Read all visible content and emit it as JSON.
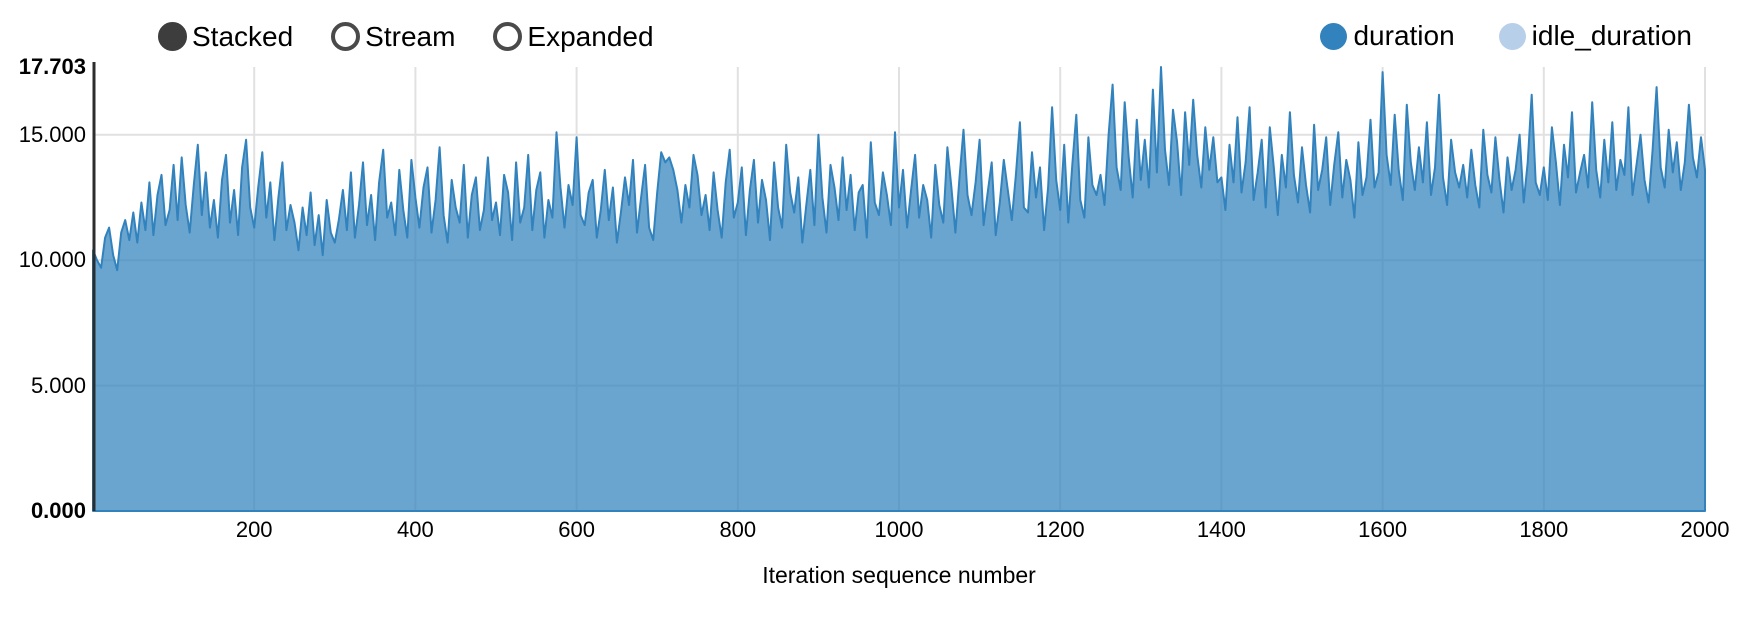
{
  "controls": {
    "options": [
      {
        "label": "Stacked",
        "selected": true
      },
      {
        "label": "Stream",
        "selected": false
      },
      {
        "label": "Expanded",
        "selected": false
      }
    ]
  },
  "legend": {
    "items": [
      {
        "label": "duration",
        "color": "#3182bd"
      },
      {
        "label": "idle_duration",
        "color": "#b8cfe9"
      }
    ]
  },
  "chart_data": {
    "type": "area",
    "title": "",
    "xlabel": "Iteration sequence number",
    "ylabel": "",
    "xlim": [
      1,
      2000
    ],
    "ylim": [
      0,
      17.703
    ],
    "grid": true,
    "legend_position": "top-right",
    "x_ticks": [
      200,
      400,
      600,
      800,
      1000,
      1200,
      1400,
      1600,
      1800,
      2000
    ],
    "y_ticks": [
      {
        "value": 0,
        "label": "0.000",
        "bold": true
      },
      {
        "value": 5,
        "label": "5.000",
        "bold": false
      },
      {
        "value": 10,
        "label": "10.000",
        "bold": false
      },
      {
        "value": 15,
        "label": "15.000",
        "bold": false
      },
      {
        "value": 17.703,
        "label": "17.703",
        "bold": true
      }
    ],
    "series": [
      {
        "name": "duration",
        "color": "#3182bd",
        "fill_opacity": 0.72,
        "x_start": 0,
        "x_step": 5,
        "values": [
          10.4,
          10.0,
          9.7,
          10.9,
          11.3,
          10.2,
          9.6,
          11.1,
          11.6,
          10.8,
          11.9,
          10.7,
          12.3,
          11.2,
          13.1,
          11.0,
          12.6,
          13.4,
          11.4,
          12.0,
          13.8,
          11.6,
          14.1,
          12.2,
          11.1,
          13.0,
          14.6,
          11.8,
          13.5,
          11.3,
          12.4,
          10.9,
          13.2,
          14.2,
          11.5,
          12.8,
          11.0,
          13.7,
          14.8,
          12.1,
          11.3,
          12.9,
          14.3,
          11.7,
          13.1,
          10.8,
          12.5,
          13.9,
          11.2,
          12.2,
          11.5,
          10.4,
          12.1,
          11.0,
          12.7,
          10.6,
          11.8,
          10.2,
          12.4,
          11.1,
          10.7,
          11.6,
          12.8,
          11.2,
          13.5,
          10.9,
          12.2,
          13.9,
          11.4,
          12.6,
          10.8,
          13.1,
          14.4,
          11.7,
          12.3,
          11.0,
          13.6,
          12.0,
          10.9,
          14.0,
          12.5,
          11.3,
          12.9,
          13.7,
          11.1,
          12.4,
          14.5,
          11.8,
          10.7,
          13.2,
          12.1,
          11.5,
          13.8,
          10.9,
          12.6,
          13.3,
          11.2,
          12.0,
          14.1,
          11.6,
          12.3,
          11.0,
          13.4,
          12.7,
          10.8,
          13.9,
          11.5,
          12.1,
          14.2,
          11.2,
          12.8,
          13.5,
          10.9,
          12.4,
          11.7,
          15.1,
          12.9,
          11.3,
          13.0,
          12.2,
          14.9,
          11.8,
          11.4,
          12.7,
          13.2,
          10.9,
          12.0,
          13.6,
          11.6,
          12.9,
          10.7,
          11.9,
          13.3,
          12.2,
          14.0,
          11.1,
          12.5,
          13.8,
          11.3,
          10.8,
          12.7,
          14.3,
          13.9,
          14.1,
          13.6,
          12.8,
          11.5,
          13.0,
          12.1,
          14.2,
          13.4,
          11.8,
          12.6,
          11.2,
          13.5,
          12.0,
          10.9,
          13.1,
          14.4,
          11.7,
          12.3,
          13.7,
          11.0,
          12.8,
          14.0,
          11.5,
          13.2,
          12.4,
          10.8,
          13.9,
          12.1,
          11.3,
          14.6,
          12.7,
          11.9,
          13.3,
          10.7,
          12.2,
          13.6,
          11.4,
          15.0,
          12.5,
          11.1,
          13.8,
          12.9,
          11.6,
          14.1,
          12.0,
          13.4,
          11.2,
          12.7,
          13.0,
          10.9,
          14.7,
          12.3,
          11.8,
          13.5,
          12.6,
          11.4,
          15.1,
          12.1,
          13.6,
          11.3,
          12.8,
          14.2,
          11.7,
          13.0,
          12.4,
          10.9,
          13.8,
          12.2,
          11.5,
          14.5,
          12.9,
          11.1,
          13.3,
          15.2,
          12.6,
          11.8,
          13.1,
          14.8,
          11.4,
          12.7,
          13.9,
          11.0,
          12.3,
          14.0,
          12.8,
          11.6,
          13.4,
          15.5,
          12.1,
          11.9,
          14.3,
          12.5,
          13.7,
          11.2,
          12.9,
          16.1,
          13.2,
          12.0,
          14.6,
          11.5,
          13.8,
          15.8,
          12.4,
          11.7,
          14.9,
          13.0,
          12.6,
          13.4,
          12.2,
          15.0,
          17.0,
          13.7,
          12.8,
          16.3,
          14.1,
          12.5,
          15.6,
          13.2,
          14.8,
          12.9,
          16.8,
          13.5,
          17.703,
          14.4,
          13.0,
          16.0,
          14.7,
          12.6,
          15.9,
          13.8,
          16.4,
          14.2,
          12.9,
          15.3,
          13.6,
          14.9,
          13.1,
          13.3,
          12.0,
          14.6,
          13.1,
          15.7,
          12.7,
          13.9,
          16.1,
          12.4,
          13.5,
          14.8,
          12.1,
          15.3,
          13.7,
          11.8,
          14.2,
          12.9,
          15.9,
          13.4,
          12.3,
          14.5,
          13.0,
          11.9,
          15.4,
          12.8,
          13.6,
          14.9,
          12.2,
          13.8,
          15.1,
          12.5,
          14.0,
          13.2,
          11.7,
          14.7,
          12.6,
          13.3,
          15.6,
          12.9,
          13.5,
          17.5,
          14.2,
          13.0,
          15.8,
          13.6,
          12.4,
          16.2,
          13.9,
          12.8,
          14.5,
          13.1,
          15.5,
          12.6,
          13.7,
          16.6,
          13.3,
          12.2,
          14.8,
          13.5,
          12.9,
          13.8,
          12.5,
          14.4,
          13.0,
          12.1,
          15.2,
          13.4,
          12.7,
          14.9,
          13.2,
          11.9,
          14.1,
          12.8,
          13.6,
          15.0,
          12.3,
          13.9,
          16.6,
          13.1,
          12.6,
          13.7,
          12.4,
          15.3,
          13.9,
          12.2,
          14.6,
          13.3,
          15.9,
          12.7,
          13.5,
          14.2,
          12.9,
          16.3,
          13.6,
          12.5,
          14.8,
          13.1,
          15.5,
          12.8,
          14.0,
          13.4,
          16.1,
          12.6,
          13.8,
          15.0,
          13.2,
          12.3,
          14.4,
          16.9,
          13.7,
          12.9,
          15.2,
          13.5,
          14.7,
          12.8,
          13.9,
          16.2,
          14.1,
          13.3,
          14.9,
          13.6
        ]
      }
    ],
    "colors": {
      "grid": "#e1e1e1",
      "y_axis_line": "#2d2d2d"
    }
  }
}
